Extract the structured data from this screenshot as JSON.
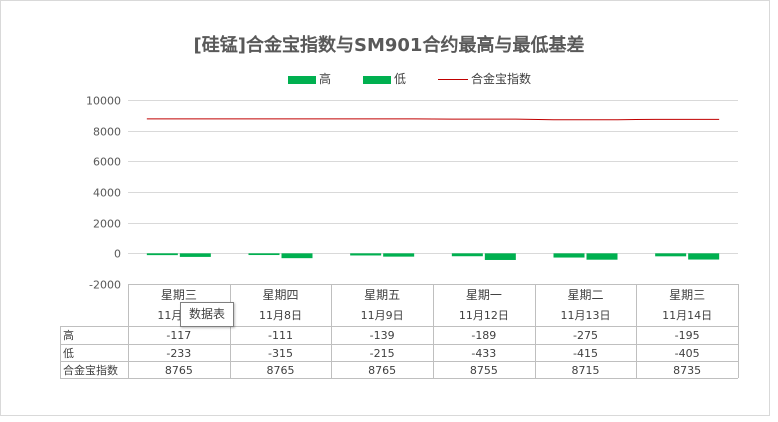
{
  "colors": {
    "high": "#00b050",
    "low": "#00b050",
    "index": "#c00000",
    "grid": "#d9d9d9"
  },
  "tooltip": {
    "label": "数据表"
  },
  "chart_data": {
    "type": "bar",
    "title": "[硅锰]合金宝指数与SM901合约最高与最低基差",
    "categories": [
      "星期三",
      "星期四",
      "星期五",
      "星期一",
      "星期二",
      "星期三"
    ],
    "dates": [
      "11月7日",
      "11月8日",
      "11月9日",
      "11月12日",
      "11月13日",
      "11月14日"
    ],
    "ylim": [
      -2000,
      10000
    ],
    "yticks": [
      -2000,
      0,
      2000,
      4000,
      6000,
      8000,
      10000
    ],
    "legend_position": "top",
    "grid": true,
    "series": [
      {
        "name": "高",
        "type": "bar",
        "values": [
          -117,
          -111,
          -139,
          -189,
          -275,
          -195
        ]
      },
      {
        "name": "低",
        "type": "bar",
        "values": [
          -233,
          -315,
          -215,
          -433,
          -415,
          -405
        ]
      },
      {
        "name": "合金宝指数",
        "type": "line",
        "values": [
          8765,
          8765,
          8765,
          8755,
          8715,
          8735
        ]
      }
    ]
  }
}
